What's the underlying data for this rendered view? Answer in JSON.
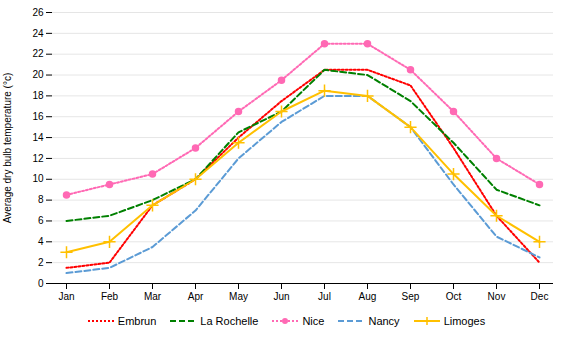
{
  "chart_data": {
    "type": "line",
    "categories": [
      "Jan",
      "Feb",
      "Mar",
      "Apr",
      "May",
      "Jun",
      "Jul",
      "Aug",
      "Sep",
      "Oct",
      "Nov",
      "Dec"
    ],
    "series": [
      {
        "name": "Embrun",
        "color": "#FF0000",
        "line_style": "dotted",
        "marker": "none",
        "values": [
          1.5,
          2.0,
          7.5,
          10.0,
          14.0,
          17.5,
          20.5,
          20.5,
          19.0,
          13.0,
          6.5,
          2.0
        ]
      },
      {
        "name": "La Rochelle",
        "color": "#008000",
        "line_style": "dashed",
        "marker": "none",
        "values": [
          6.0,
          6.5,
          8.0,
          10.0,
          14.5,
          16.5,
          20.5,
          20.0,
          17.5,
          13.5,
          9.0,
          7.5
        ]
      },
      {
        "name": "Nice",
        "color": "#FF69B4",
        "line_style": "dotted",
        "marker": "circle",
        "values": [
          8.5,
          9.5,
          10.5,
          13.0,
          16.5,
          19.5,
          23.0,
          23.0,
          20.5,
          16.5,
          12.0,
          9.5
        ]
      },
      {
        "name": "Nancy",
        "color": "#5B9BD5",
        "line_style": "dashed",
        "marker": "none",
        "values": [
          1.0,
          1.5,
          3.5,
          7.0,
          12.0,
          15.5,
          18.0,
          18.0,
          15.0,
          9.5,
          4.5,
          2.5
        ]
      },
      {
        "name": "Limoges",
        "color": "#FFC000",
        "line_style": "solid",
        "marker": "plus",
        "values": [
          3.0,
          4.0,
          7.5,
          10.0,
          13.5,
          16.5,
          18.5,
          18.0,
          15.0,
          10.5,
          6.5,
          4.0
        ]
      }
    ],
    "ylabel": "Average dry bulb temperature (°c)",
    "ylim": [
      0,
      26
    ],
    "yticks": [
      0,
      2,
      4,
      6,
      8,
      10,
      12,
      14,
      16,
      18,
      20,
      22,
      24,
      26
    ],
    "grid": true,
    "legend": "bottom"
  }
}
